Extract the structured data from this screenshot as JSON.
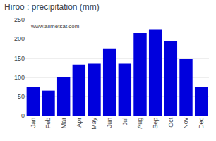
{
  "chart_data": {
    "type": "bar",
    "title": "Hiroo : precipitation (mm)",
    "categories": [
      "Jan",
      "Feb",
      "Mar",
      "Apr",
      "May",
      "Jun",
      "Jul",
      "Aug",
      "Sep",
      "Oct",
      "Nov",
      "Dec"
    ],
    "values": [
      75,
      65,
      101,
      133,
      135,
      175,
      135,
      215,
      225,
      195,
      148,
      75
    ],
    "color": "#0000dd",
    "ylim": [
      0,
      250
    ],
    "yticks": [
      0,
      50,
      100,
      150,
      200,
      250
    ],
    "grid": true,
    "annotations": [
      "www.allmetsat.com"
    ]
  }
}
